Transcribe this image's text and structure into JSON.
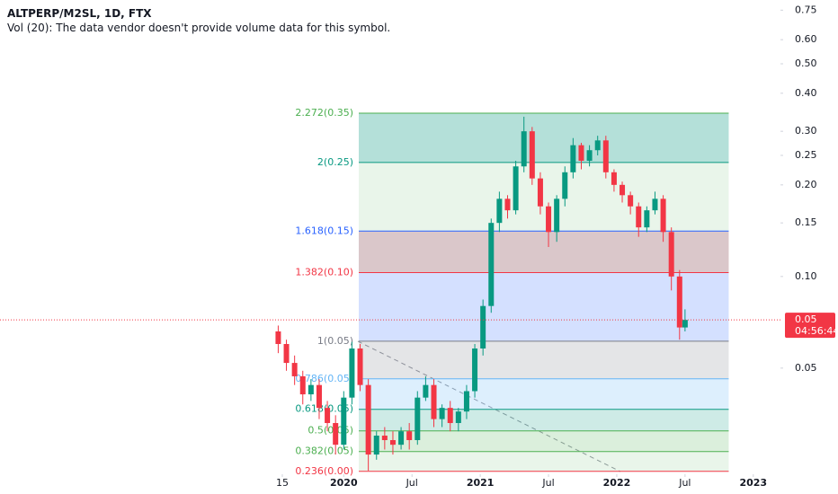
{
  "chart_data": {
    "type": "candlestick",
    "title": "ALTPERP/M2SL, 1D, FTX",
    "subtitle": "Vol (20): The data vendor doesn't provide volume data for this symbol.",
    "log_scale": true,
    "up_color": "#089981",
    "down_color": "#f23645",
    "x": [
      2019.52,
      2019.58,
      2019.64,
      2019.7,
      2019.76,
      2019.82,
      2019.88,
      2019.94,
      2020.0,
      2020.06,
      2020.12,
      2020.18,
      2020.24,
      2020.3,
      2020.36,
      2020.42,
      2020.48,
      2020.54,
      2020.6,
      2020.66,
      2020.72,
      2020.78,
      2020.84,
      2020.9,
      2020.96,
      2021.02,
      2021.08,
      2021.14,
      2021.2,
      2021.26,
      2021.32,
      2021.38,
      2021.44,
      2021.5,
      2021.56,
      2021.62,
      2021.68,
      2021.74,
      2021.8,
      2021.86,
      2021.92,
      2021.98,
      2022.04,
      2022.1,
      2022.16,
      2022.22,
      2022.28,
      2022.34,
      2022.4,
      2022.46,
      2022.5
    ],
    "open": [
      0.066,
      0.06,
      0.052,
      0.047,
      0.041,
      0.044,
      0.037,
      0.033,
      0.028,
      0.04,
      0.058,
      0.044,
      0.026,
      0.03,
      0.029,
      0.028,
      0.031,
      0.029,
      0.04,
      0.044,
      0.034,
      0.037,
      0.033,
      0.036,
      0.042,
      0.058,
      0.08,
      0.15,
      0.18,
      0.165,
      0.23,
      0.3,
      0.21,
      0.17,
      0.14,
      0.18,
      0.22,
      0.27,
      0.24,
      0.26,
      0.28,
      0.22,
      0.2,
      0.185,
      0.17,
      0.145,
      0.165,
      0.18,
      0.14,
      0.1,
      0.068
    ],
    "high": [
      0.069,
      0.062,
      0.055,
      0.049,
      0.046,
      0.046,
      0.039,
      0.035,
      0.042,
      0.061,
      0.06,
      0.046,
      0.031,
      0.032,
      0.031,
      0.032,
      0.033,
      0.042,
      0.047,
      0.046,
      0.038,
      0.039,
      0.037,
      0.044,
      0.06,
      0.084,
      0.155,
      0.19,
      0.185,
      0.24,
      0.335,
      0.31,
      0.22,
      0.175,
      0.185,
      0.23,
      0.285,
      0.275,
      0.27,
      0.29,
      0.29,
      0.225,
      0.205,
      0.19,
      0.175,
      0.17,
      0.19,
      0.185,
      0.145,
      0.105,
      0.078
    ],
    "low": [
      0.056,
      0.049,
      0.044,
      0.038,
      0.039,
      0.034,
      0.031,
      0.026,
      0.027,
      0.038,
      0.042,
      0.023,
      0.025,
      0.027,
      0.026,
      0.027,
      0.027,
      0.028,
      0.039,
      0.032,
      0.032,
      0.031,
      0.031,
      0.034,
      0.04,
      0.055,
      0.076,
      0.14,
      0.155,
      0.16,
      0.22,
      0.2,
      0.16,
      0.125,
      0.13,
      0.17,
      0.21,
      0.225,
      0.23,
      0.25,
      0.21,
      0.19,
      0.175,
      0.16,
      0.135,
      0.14,
      0.16,
      0.13,
      0.09,
      0.062,
      0.066
    ],
    "close": [
      0.06,
      0.052,
      0.047,
      0.041,
      0.044,
      0.037,
      0.033,
      0.028,
      0.04,
      0.058,
      0.044,
      0.026,
      0.03,
      0.029,
      0.028,
      0.031,
      0.029,
      0.04,
      0.044,
      0.034,
      0.037,
      0.033,
      0.036,
      0.042,
      0.058,
      0.08,
      0.15,
      0.18,
      0.165,
      0.23,
      0.3,
      0.21,
      0.17,
      0.14,
      0.18,
      0.22,
      0.27,
      0.24,
      0.26,
      0.28,
      0.22,
      0.2,
      0.185,
      0.17,
      0.145,
      0.165,
      0.18,
      0.14,
      0.1,
      0.068,
      0.072
    ],
    "xlim": [
      2017.482,
      2023.199
    ],
    "xticks": [
      {
        "value": 2019.55,
        "label": "15"
      },
      2020,
      {
        "value": 2020.5,
        "label": "Jul"
      },
      2021,
      {
        "value": 2021.5,
        "label": "Jul"
      },
      2022,
      {
        "value": 2022.5,
        "label": "Jul"
      },
      2023
    ],
    "ylim": [
      0.0224,
      0.81
    ],
    "yticks": [
      0.75,
      {
        "value": 0.6,
        "label": "0.60"
      },
      {
        "value": 0.5,
        "label": "0.50"
      },
      {
        "value": 0.4,
        "label": "0.40"
      },
      {
        "value": 0.3,
        "label": "0.30"
      },
      0.25,
      {
        "value": 0.2,
        "label": "0.20"
      },
      0.15,
      {
        "value": 0.1,
        "label": "0.10"
      },
      0.05
    ],
    "last_price_label": "0.05",
    "countdown": "04:56:44",
    "fib_start": 2020.11,
    "fib_end": 2022.82,
    "fib_levels": [
      {
        "label": "2.272(0.35)",
        "price": 0.344,
        "color": "#4caf50",
        "fill": "rgba(8,153,129,0.30)"
      },
      {
        "label": "2(0.25)",
        "price": 0.237,
        "color": "#089981",
        "fill": "rgba(76,175,80,0.12)"
      },
      {
        "label": "1.618(0.15)",
        "price": 0.141,
        "color": "#2962ff",
        "fill": "rgba(140,80,90,0.32)"
      },
      {
        "label": "1.382(0.10)",
        "price": 0.103,
        "color": "#f23645",
        "fill": "rgba(41,98,255,0.20)"
      },
      {
        "label": "1(0.05)",
        "price": 0.0613,
        "color": "#787b86",
        "fill": "rgba(120,123,134,0.20)"
      },
      {
        "label": "0.786(0.05)",
        "price": 0.0461,
        "color": "#64b5f6",
        "fill": "rgba(100,181,246,0.22)"
      },
      {
        "label": "0.618(0.05)",
        "price": 0.0366,
        "color": "#089981",
        "fill": "rgba(8,153,129,0.20)"
      },
      {
        "label": "0.5(0.05)",
        "price": 0.0311,
        "color": "#4caf50",
        "fill": "rgba(76,175,80,0.20)"
      },
      {
        "label": "0.382(0.05)",
        "price": 0.0266,
        "color": "#4caf50",
        "fill": "rgba(76,175,80,0.12)"
      },
      {
        "label": "0.236(0.00)",
        "price": 0.0229,
        "color": "#f23645"
      }
    ]
  }
}
